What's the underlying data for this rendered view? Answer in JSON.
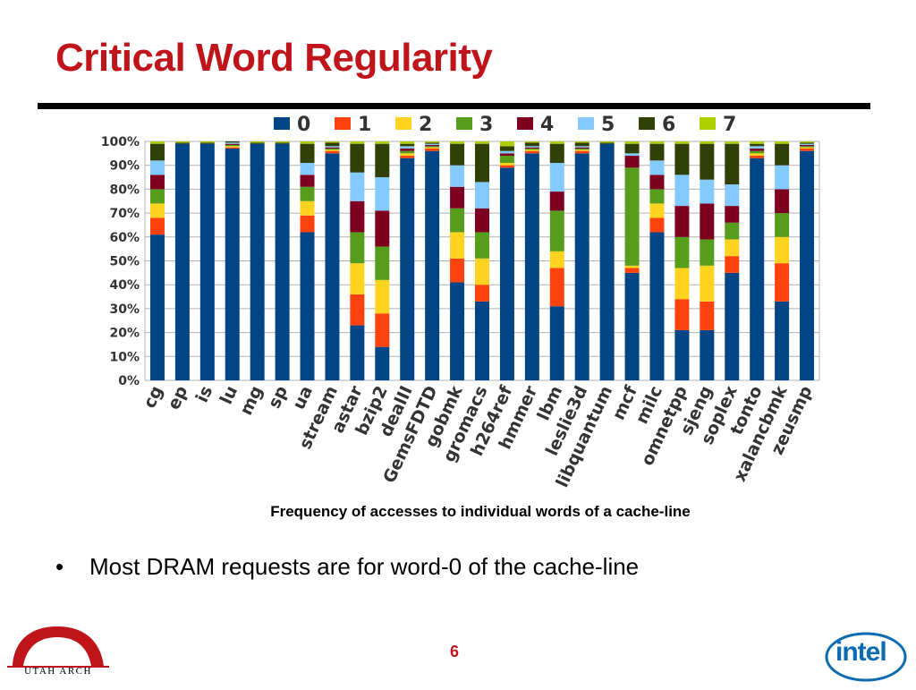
{
  "slide": {
    "title": "Critical Word Regularity",
    "caption": "Frequency of accesses to individual words of a cache-line",
    "bullets": [
      "Most DRAM requests are for word-0 of the cache-line"
    ],
    "page_number": "6",
    "logos": {
      "left_text": "UTAH ARCH",
      "right_text": "intel"
    }
  },
  "chart_data": {
    "type": "bar",
    "stacked": true,
    "legend_position": "top",
    "grid": true,
    "ylim": [
      0,
      100
    ],
    "yticks": [
      "0%",
      "10%",
      "20%",
      "30%",
      "40%",
      "50%",
      "60%",
      "70%",
      "80%",
      "90%",
      "100%"
    ],
    "categories": [
      "cg",
      "ep",
      "is",
      "lu",
      "mg",
      "sp",
      "ua",
      "stream",
      "astar",
      "bzip2",
      "dealII",
      "GemsFDTD",
      "gobmk",
      "gromacs",
      "h264ref",
      "hmmer",
      "lbm",
      "leslie3d",
      "libquantum",
      "mcf",
      "milc",
      "omnetpp",
      "sjeng",
      "soplex",
      "tonto",
      "xalancbmk",
      "zeusmp"
    ],
    "series": [
      {
        "name": "0",
        "color": "#004586",
        "values": [
          61,
          99,
          99,
          97,
          99,
          99,
          62,
          95,
          23,
          14,
          93,
          96,
          41,
          33,
          89,
          95,
          31,
          95,
          99,
          45,
          62,
          21,
          21,
          45,
          93,
          33,
          96
        ]
      },
      {
        "name": "1",
        "color": "#ff420e",
        "values": [
          7,
          0,
          0,
          0.5,
          0,
          0,
          7,
          1,
          13,
          14,
          1,
          1,
          10,
          7,
          1,
          1,
          16,
          1,
          0,
          2,
          6,
          13,
          12,
          7,
          1,
          16,
          1
        ]
      },
      {
        "name": "2",
        "color": "#ffd320",
        "values": [
          6,
          0,
          0,
          0.5,
          0,
          0,
          6,
          0.5,
          13,
          14,
          1,
          0.5,
          11,
          11,
          1,
          0.5,
          7,
          0.5,
          0,
          1,
          6,
          13,
          15,
          7,
          1,
          11,
          0.5
        ]
      },
      {
        "name": "3",
        "color": "#579d1c",
        "values": [
          6,
          0,
          0,
          0.5,
          0,
          0,
          6,
          0.5,
          13,
          14,
          1,
          0.5,
          10,
          11,
          3,
          0.5,
          17,
          0.5,
          0,
          41,
          6,
          13,
          11,
          7,
          1,
          10,
          0.5
        ]
      },
      {
        "name": "4",
        "color": "#7e0021",
        "values": [
          6,
          0,
          0,
          0.5,
          0,
          0,
          5,
          0.5,
          13,
          15,
          1,
          0.5,
          9,
          10,
          1,
          0.5,
          8,
          0.5,
          0,
          5,
          6,
          13,
          15,
          7,
          1,
          10,
          0.5
        ]
      },
      {
        "name": "5",
        "color": "#83caff",
        "values": [
          6,
          0,
          0,
          0.5,
          0,
          0,
          5,
          0.5,
          12,
          14,
          1,
          0.5,
          9,
          11,
          1,
          0.5,
          12,
          0.5,
          0,
          1,
          6,
          13,
          10,
          9,
          1,
          10,
          0.5
        ]
      },
      {
        "name": "6",
        "color": "#314004",
        "values": [
          7,
          0.5,
          0.5,
          0.5,
          0.5,
          0.5,
          8,
          1.5,
          12,
          14,
          1,
          0.5,
          9,
          16,
          2,
          1.5,
          8,
          1.5,
          0.5,
          4,
          7,
          13,
          15,
          17,
          1,
          9,
          0.5
        ]
      },
      {
        "name": "7",
        "color": "#aecf00",
        "values": [
          1,
          0.5,
          0.5,
          0.5,
          0.5,
          0.5,
          1,
          0.5,
          1,
          1,
          1,
          0.5,
          1,
          1,
          2,
          0.5,
          1,
          0.5,
          0.5,
          1,
          1,
          1,
          1,
          1,
          1,
          1,
          0.5
        ]
      }
    ]
  }
}
